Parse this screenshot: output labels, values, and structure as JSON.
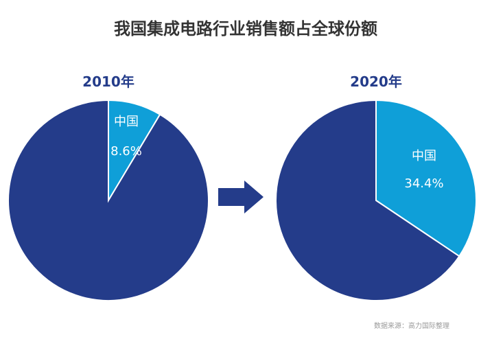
{
  "chart_data": {
    "type": "pie",
    "title": "我国集成电路行业销售额占全球份额",
    "source": "数据来源：高力国际整理",
    "colors": {
      "highlight": "#0f9fd8",
      "rest": "#243c8a",
      "arrow": "#243c8a"
    },
    "charts": [
      {
        "year": "2010年",
        "slices": [
          {
            "name": "中国",
            "value": 8.6,
            "label": "8.6%"
          },
          {
            "value": 91.4
          }
        ]
      },
      {
        "year": "2020年",
        "slices": [
          {
            "name": "中国",
            "value": 34.4,
            "label": "34.4%"
          },
          {
            "value": 65.6
          }
        ]
      }
    ]
  }
}
